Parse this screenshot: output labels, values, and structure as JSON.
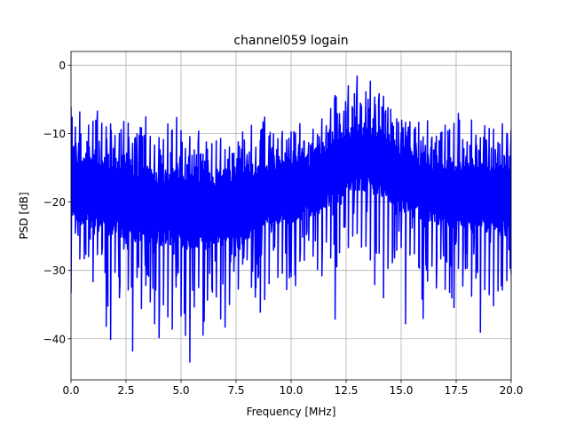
{
  "chart_data": {
    "type": "line",
    "title": "channel059 logain",
    "xlabel": "Frequency [MHz]",
    "ylabel": "PSD [dB]",
    "xlim": [
      0.0,
      20.0
    ],
    "ylim": [
      -46.0,
      2.0
    ],
    "x_ticks": [
      0.0,
      2.5,
      5.0,
      7.5,
      10.0,
      12.5,
      15.0,
      17.5,
      20.0
    ],
    "x_tick_labels": [
      "0.0",
      "2.5",
      "5.0",
      "7.5",
      "10.0",
      "12.5",
      "15.0",
      "17.5",
      "20.0"
    ],
    "y_ticks": [
      0,
      -10,
      -20,
      -30,
      -40
    ],
    "y_tick_labels": [
      "0",
      "−10",
      "−20",
      "−30",
      "−40"
    ],
    "grid": true,
    "series": [
      {
        "color": "#0000ff",
        "x": [
          0.0,
          0.2,
          0.4,
          0.6,
          0.8,
          1.0,
          1.2,
          1.4,
          1.6,
          1.8,
          2.0,
          2.2,
          2.4,
          2.6,
          2.8,
          3.0,
          3.2,
          3.4,
          3.6,
          3.8,
          4.0,
          4.2,
          4.4,
          4.6,
          4.8,
          5.0,
          5.2,
          5.4,
          5.6,
          5.8,
          6.0,
          6.2,
          6.4,
          6.6,
          6.8,
          7.0,
          7.2,
          7.4,
          7.6,
          7.8,
          8.0,
          8.2,
          8.4,
          8.6,
          8.8,
          9.0,
          9.2,
          9.4,
          9.6,
          9.8,
          10.0,
          10.2,
          10.4,
          10.6,
          10.8,
          11.0,
          11.2,
          11.4,
          11.6,
          11.8,
          12.0,
          12.2,
          12.4,
          12.6,
          12.8,
          13.0,
          13.2,
          13.4,
          13.6,
          13.8,
          14.0,
          14.2,
          14.4,
          14.6,
          14.8,
          15.0,
          15.2,
          15.4,
          15.6,
          15.8,
          16.0,
          16.2,
          16.4,
          16.6,
          16.8,
          17.0,
          17.2,
          17.4,
          17.6,
          17.8,
          18.0,
          18.2,
          18.4,
          18.6,
          18.8,
          19.0,
          19.2,
          19.4,
          19.6,
          19.8,
          20.0
        ],
        "max": [
          -4.5,
          -7,
          -6.5,
          -12,
          -8,
          -7,
          -6,
          -7.5,
          -8.5,
          -7,
          -8.5,
          -7.5,
          -7.5,
          -8,
          -9,
          -9.5,
          -8,
          -7.5,
          -10,
          -10.5,
          -9,
          -10,
          -7,
          -8.5,
          -7.5,
          -9.5,
          -11,
          -10,
          -10.5,
          -9,
          -11,
          -10.5,
          -10,
          -11,
          -10.5,
          -11,
          -10,
          -10.5,
          -9.5,
          -9,
          -11,
          -8.5,
          -9.5,
          -8.5,
          -7.5,
          -8.5,
          -8,
          -8.5,
          -9.5,
          -8.5,
          -7.5,
          -8,
          -8.5,
          -9,
          -9.5,
          -8.5,
          -8,
          -7,
          -7.5,
          -6,
          -2,
          -6,
          -5,
          -3,
          -4.5,
          -1.5,
          -4,
          -3,
          0,
          -3.5,
          -2.5,
          -4.5,
          -5.5,
          -6.5,
          -6,
          -7.5,
          -7,
          -8,
          -7,
          -7.5,
          -8.5,
          -7,
          -8.5,
          -8,
          -7.5,
          -6.5,
          -7.5,
          -8.5,
          -7,
          -9,
          -9.5,
          -7,
          -10,
          -9,
          -8,
          -8.5,
          -7.5,
          -9.5,
          -8.5,
          -7.5,
          -8
        ],
        "min": [
          -34,
          -25,
          -30,
          -29,
          -28,
          -32,
          -29,
          -30,
          -38.5,
          -41.5,
          -31,
          -35,
          -29,
          -33,
          -43,
          -32,
          -37,
          -33,
          -35,
          -39,
          -41,
          -36,
          -38,
          -39,
          -33,
          -38,
          -40,
          -43.5,
          -37,
          -35,
          -40.5,
          -36,
          -34,
          -36,
          -38,
          -40.5,
          -36,
          -32,
          -33,
          -31,
          -29,
          -33,
          -35,
          -37,
          -36,
          -34,
          -29,
          -33,
          -32,
          -35,
          -31,
          -34,
          -31,
          -29,
          -27,
          -28,
          -30,
          -31,
          -28,
          -29,
          -39,
          -28,
          -24,
          -27,
          -26,
          -25,
          -27,
          -28,
          -29,
          -33,
          -30,
          -36,
          -31,
          -29,
          -28,
          -27,
          -38,
          -29,
          -30,
          -31,
          -39,
          -32,
          -31,
          -35,
          -30,
          -33,
          -34,
          -36,
          -30,
          -34,
          -32,
          -35,
          -33,
          -41.5,
          -33,
          -34,
          -36,
          -34,
          -35,
          -32,
          -31
        ],
        "typ_high": [
          -11,
          -12,
          -13,
          -12.5,
          -13,
          -13,
          -13.5,
          -13,
          -13.5,
          -14,
          -13.5,
          -14,
          -14,
          -13.5,
          -14,
          -14.5,
          -14,
          -14.5,
          -14.5,
          -15,
          -15,
          -15,
          -14.5,
          -15,
          -15,
          -15,
          -15.5,
          -15.5,
          -15.5,
          -15,
          -15.5,
          -15.5,
          -16,
          -15.5,
          -15.5,
          -15.5,
          -15,
          -15,
          -15,
          -14.5,
          -14.5,
          -14.5,
          -14,
          -14,
          -14,
          -13.5,
          -13.5,
          -13.5,
          -13.5,
          -13,
          -13,
          -13,
          -13,
          -12.5,
          -12.5,
          -12,
          -12,
          -11.5,
          -11,
          -10.5,
          -10,
          -9.5,
          -9,
          -9,
          -8.5,
          -8.5,
          -8.5,
          -8.5,
          -8.5,
          -9,
          -9,
          -9.5,
          -10,
          -10.5,
          -11,
          -11,
          -11.5,
          -12,
          -12,
          -12.5,
          -12.5,
          -13,
          -13,
          -13,
          -13,
          -13.5,
          -13.5,
          -13.5,
          -13.5,
          -14,
          -14,
          -14,
          -14,
          -14,
          -14,
          -14,
          -14,
          -14.5,
          -14.5,
          -14.5,
          -14.5
        ],
        "typ_low": [
          -22,
          -23,
          -23.5,
          -23,
          -24,
          -24,
          -24.5,
          -24,
          -25,
          -25,
          -24.5,
          -25,
          -25.5,
          -25,
          -25.5,
          -26,
          -25.5,
          -26,
          -26,
          -26.5,
          -26.5,
          -26.5,
          -26,
          -26.5,
          -26.5,
          -26.5,
          -27,
          -27,
          -27,
          -26.5,
          -27,
          -27,
          -27,
          -26.5,
          -26.5,
          -26.5,
          -26,
          -26,
          -26,
          -25.5,
          -25.5,
          -25,
          -25,
          -24.5,
          -24.5,
          -24,
          -24,
          -24,
          -23.5,
          -23.5,
          -23,
          -23,
          -23,
          -22.5,
          -22.5,
          -22,
          -22,
          -21.5,
          -21,
          -20.5,
          -20,
          -19.5,
          -19,
          -19,
          -18.5,
          -18.5,
          -18.5,
          -18.5,
          -18.5,
          -19,
          -19,
          -19.5,
          -20,
          -20.5,
          -21,
          -21.5,
          -22,
          -22,
          -22.5,
          -22.5,
          -23,
          -23,
          -23,
          -23.5,
          -23.5,
          -23.5,
          -24,
          -24,
          -24,
          -24,
          -24,
          -24.5,
          -24.5,
          -24.5,
          -24.5,
          -24.5,
          -24.5,
          -25,
          -25,
          -25,
          -25
        ]
      }
    ]
  }
}
